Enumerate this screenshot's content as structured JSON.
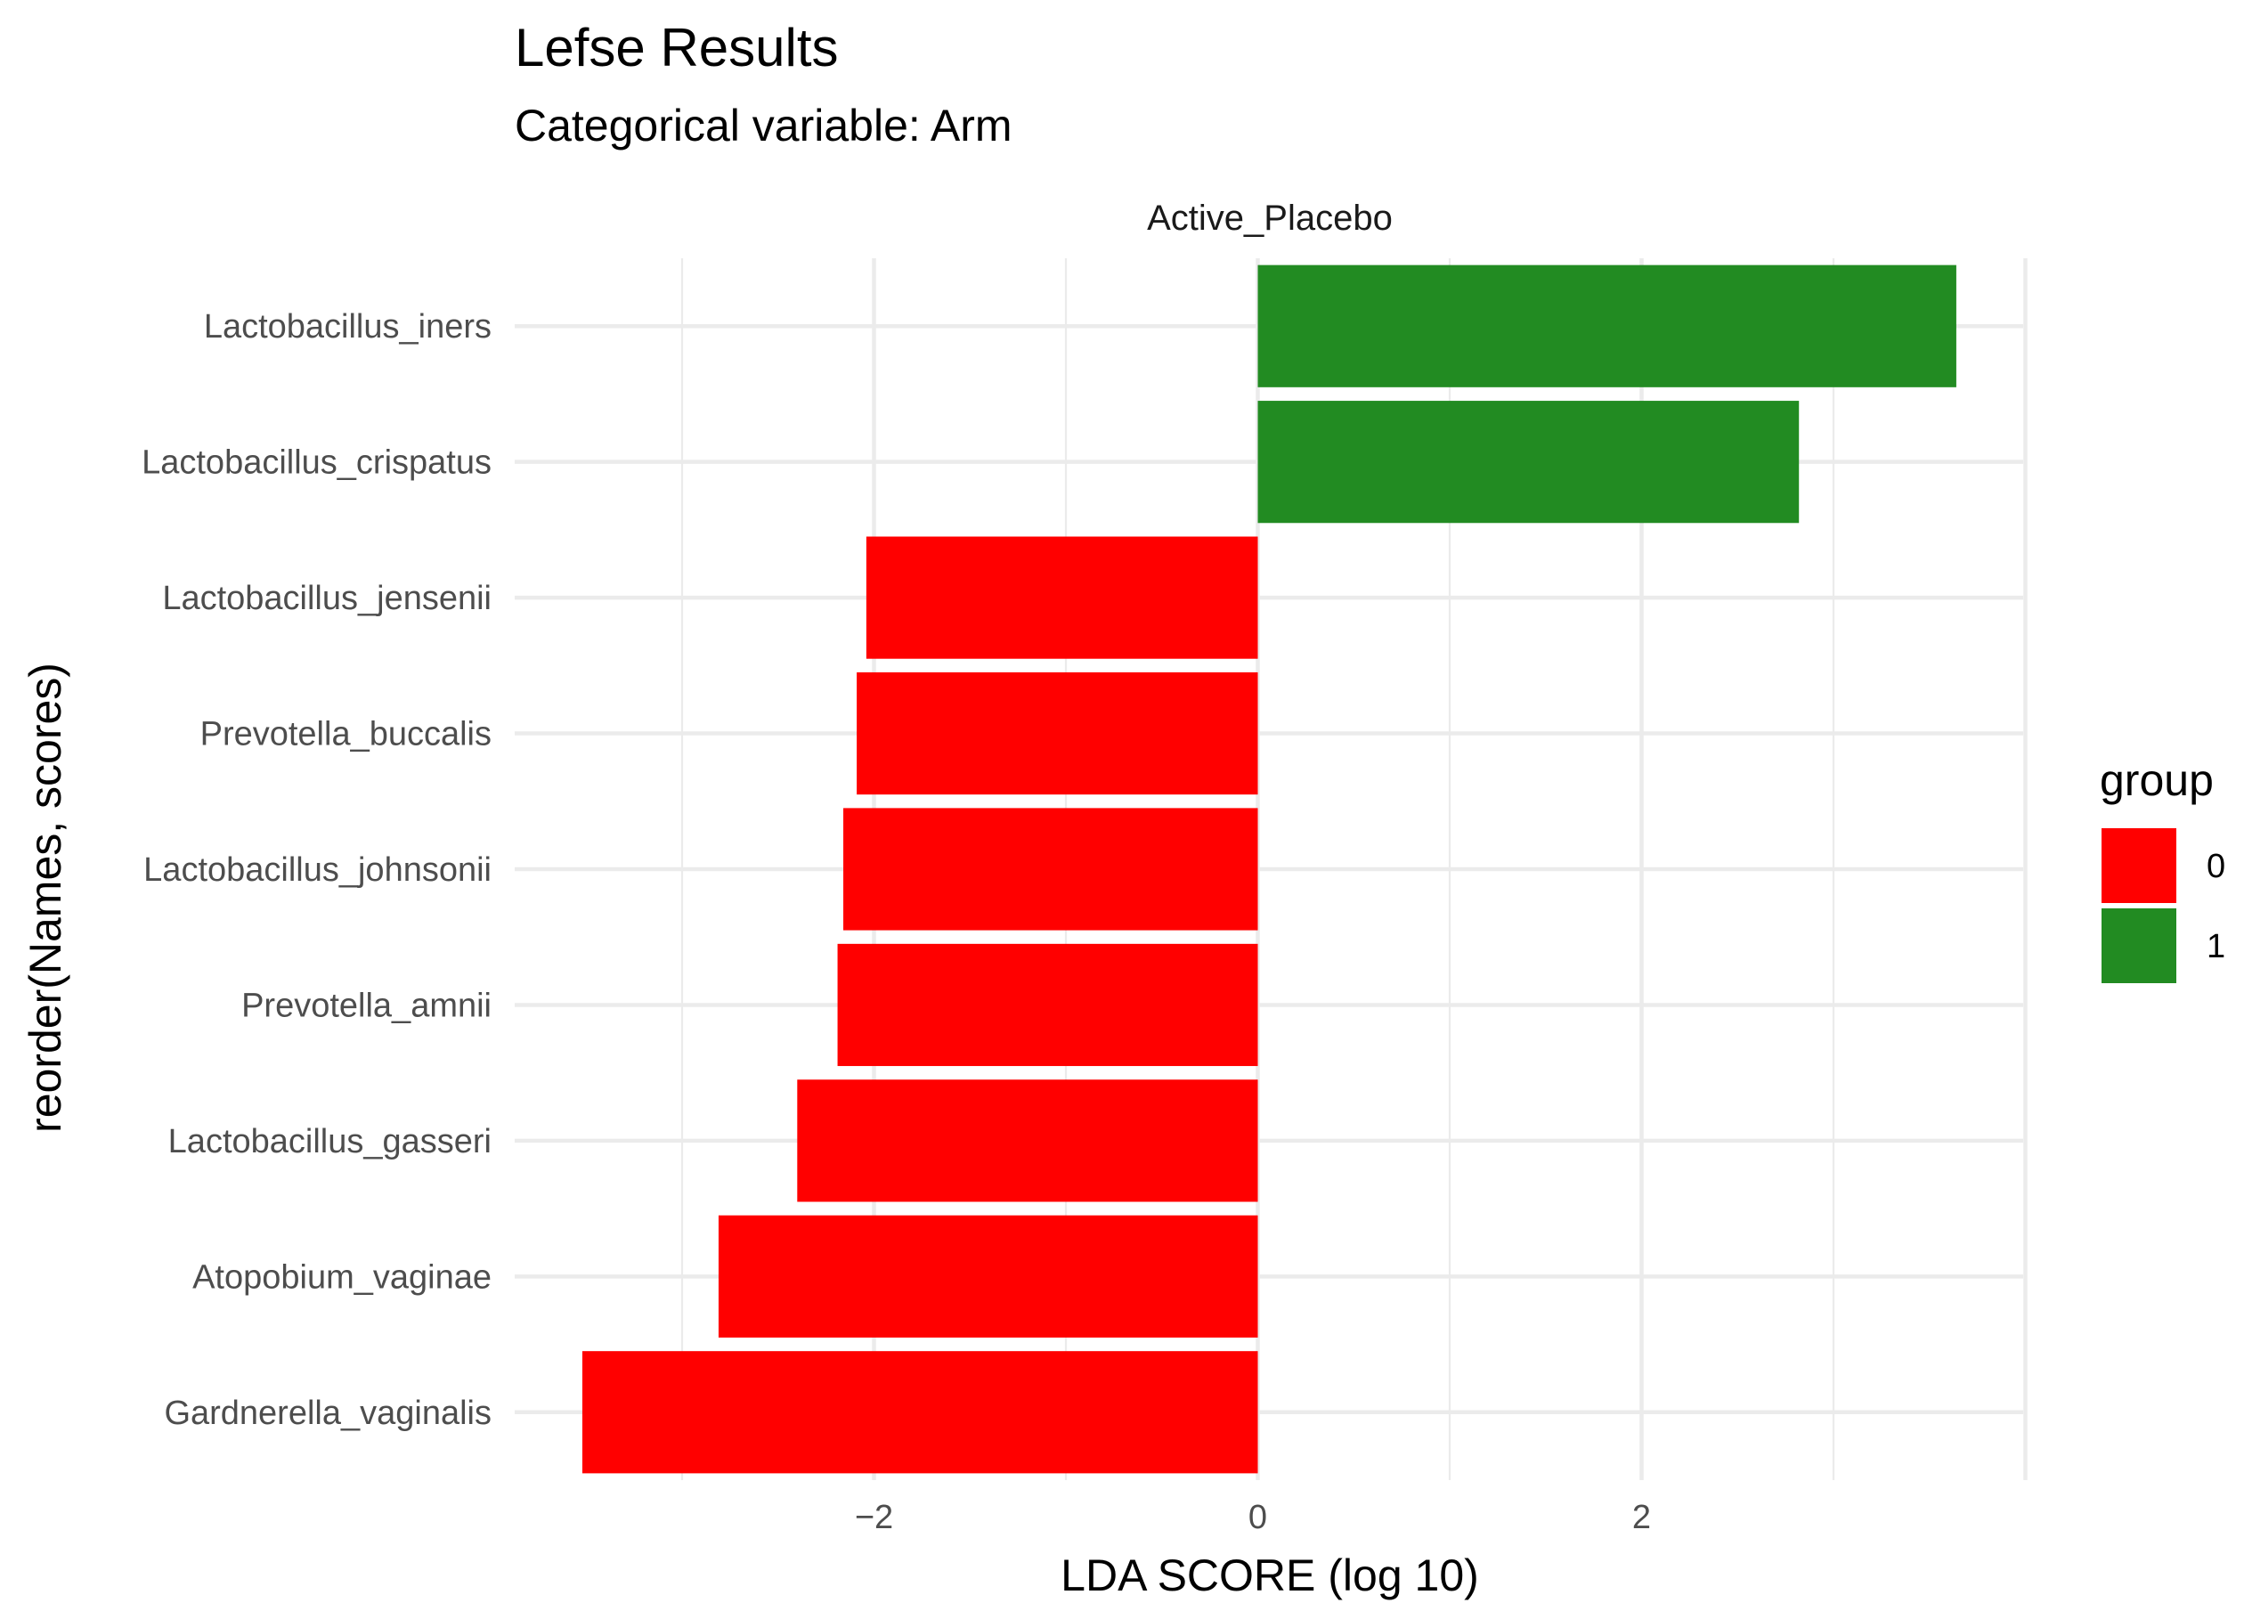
{
  "chart_data": {
    "type": "bar",
    "orientation": "horizontal",
    "title": "Lefse Results",
    "subtitle": "Categorical variable: Arm",
    "facet": "Active_Placebo",
    "xlabel": "LDA SCORE (log 10)",
    "ylabel": "reorder(Names, scores)",
    "xlim": [
      -3.8,
      4.0
    ],
    "xticks": [
      -2,
      0,
      2
    ],
    "grid": true,
    "legend": {
      "title": "group",
      "position": "right",
      "entries": [
        {
          "label": "0",
          "color": "#ff0000"
        },
        {
          "label": "1",
          "color": "#228b22"
        }
      ]
    },
    "categories": [
      "Lactobacillus_iners",
      "Lactobacillus_crispatus",
      "Lactobacillus_jensenii",
      "Prevotella_buccalis",
      "Lactobacillus_johnsonii",
      "Prevotella_amnii",
      "Lactobacillus_gasseri",
      "Atopobium_vaginae",
      "Gardnerella_vaginalis"
    ],
    "values": [
      3.64,
      2.82,
      -2.04,
      -2.09,
      -2.16,
      -2.19,
      -2.4,
      -2.81,
      -3.52
    ],
    "groups": [
      "1",
      "1",
      "0",
      "0",
      "0",
      "0",
      "0",
      "0",
      "0"
    ]
  }
}
